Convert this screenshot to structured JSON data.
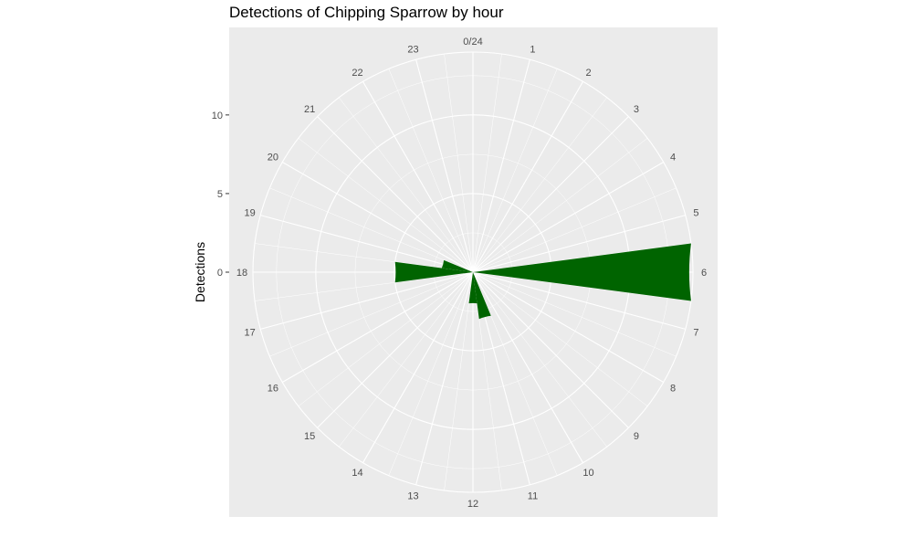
{
  "chart_data": {
    "type": "bar",
    "coord": "polar",
    "title": "Detections of Chipping Sparrow by hour",
    "ylabel": "Detections",
    "ylim": [
      0,
      14
    ],
    "y_ticks": [
      0,
      5,
      10
    ],
    "hour_labels": [
      "0/24",
      "1",
      "2",
      "3",
      "4",
      "5",
      "6",
      "7",
      "8",
      "9",
      "10",
      "11",
      "12",
      "13",
      "14",
      "15",
      "16",
      "17",
      "18",
      "19",
      "20",
      "21",
      "22",
      "23"
    ],
    "categories": [
      0,
      1,
      2,
      3,
      4,
      5,
      6,
      7,
      8,
      9,
      10,
      11,
      12,
      13,
      14,
      15,
      16,
      17,
      18,
      19,
      20,
      21,
      22,
      23
    ],
    "values": [
      0,
      0,
      0,
      0,
      0,
      0,
      14,
      0,
      0,
      0,
      0,
      3,
      2,
      0,
      0,
      0,
      0,
      0,
      5,
      2,
      0,
      0,
      0,
      0
    ],
    "bar_color": "#006400",
    "panel_color": "#ebebeb",
    "grid": true,
    "legend": "none"
  }
}
